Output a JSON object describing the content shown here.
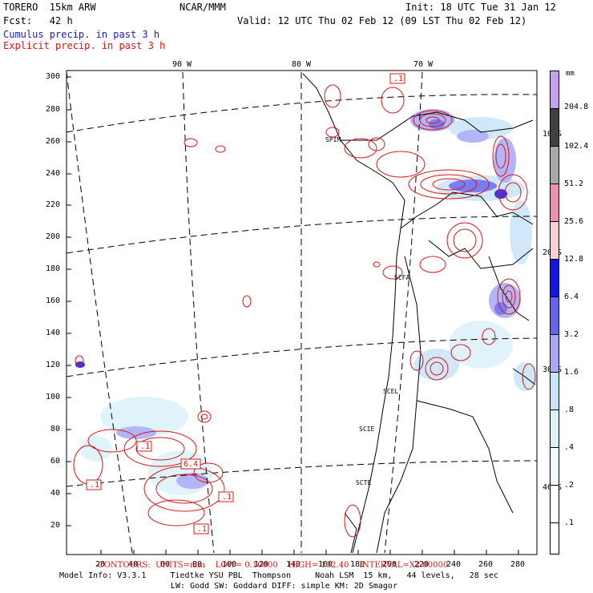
{
  "header": {
    "model": "TORERO  15km ARW",
    "org": "NCAR/MMM",
    "init": "Init: 18 UTC Tue 31 Jan 12",
    "fcst": "Fcst:   42 h",
    "valid": "Valid: 12 UTC Thu 02 Feb 12 (09 LST Thu 02 Feb 12)",
    "cumulus": "Cumulus precip. in past 3 h",
    "explicit": "Explicit precip. in past 3 h"
  },
  "colors": {
    "cumulus_text": "#1a1ac8",
    "explicit_text": "#e01010",
    "contour": "#d81818",
    "coast": "#000000"
  },
  "lon_labels": [
    "90 W",
    "80 W",
    "70 W"
  ],
  "lat_labels": [
    "10 S",
    "20 S",
    "30 S",
    "40 S"
  ],
  "y_ticks": [
    "300",
    "280",
    "260",
    "240",
    "220",
    "200",
    "180",
    "160",
    "140",
    "120",
    "100",
    "80",
    "60",
    "40",
    "20"
  ],
  "x_ticks": [
    "20",
    "40",
    "60",
    "80",
    "100",
    "120",
    "140",
    "160",
    "180",
    "200",
    "220",
    "240",
    "260",
    "280"
  ],
  "stations": [
    "SPIM",
    "SCFA",
    "SCEL",
    "SCIE",
    "SCTE"
  ],
  "contour_labels": [
    ".1",
    ".1",
    "6.4",
    ".1",
    ".1",
    ".1"
  ],
  "legend": {
    "unit": "mm",
    "items": [
      {
        "label": "204.8",
        "color": "#c8a0f0"
      },
      {
        "label": "102.4",
        "color": "#404040"
      },
      {
        "label": "51.2",
        "color": "#a8a8a8"
      },
      {
        "label": "25.6",
        "color": "#f090b0"
      },
      {
        "label": "12.8",
        "color": "#f8d0d0"
      },
      {
        "label": "6.4",
        "color": "#1414e8"
      },
      {
        "label": "3.2",
        "color": "#6464f0"
      },
      {
        "label": "1.6",
        "color": "#a8a8f8"
      },
      {
        "label": ".8",
        "color": "#c8e4f8"
      },
      {
        "label": ".4",
        "color": "#dcf2fa"
      },
      {
        "label": ".2",
        "color": "#eefafc"
      },
      {
        "label": ".1",
        "color": "#ffffff"
      }
    ]
  },
  "footer": {
    "contours": "CONTOURS:  UNITS=mm    LOW= 0.10000    HIGH= 102.40    INTERVAL=X2.00000",
    "model_info": "Model Info: V3.3.1     Tiedtke YSU PBL  Thompson     Noah LSM  15 km,   44 levels,   28 sec",
    "physics": "LW: Godd SW: Goddard DIFF: simple KM: 2D Smagor"
  }
}
